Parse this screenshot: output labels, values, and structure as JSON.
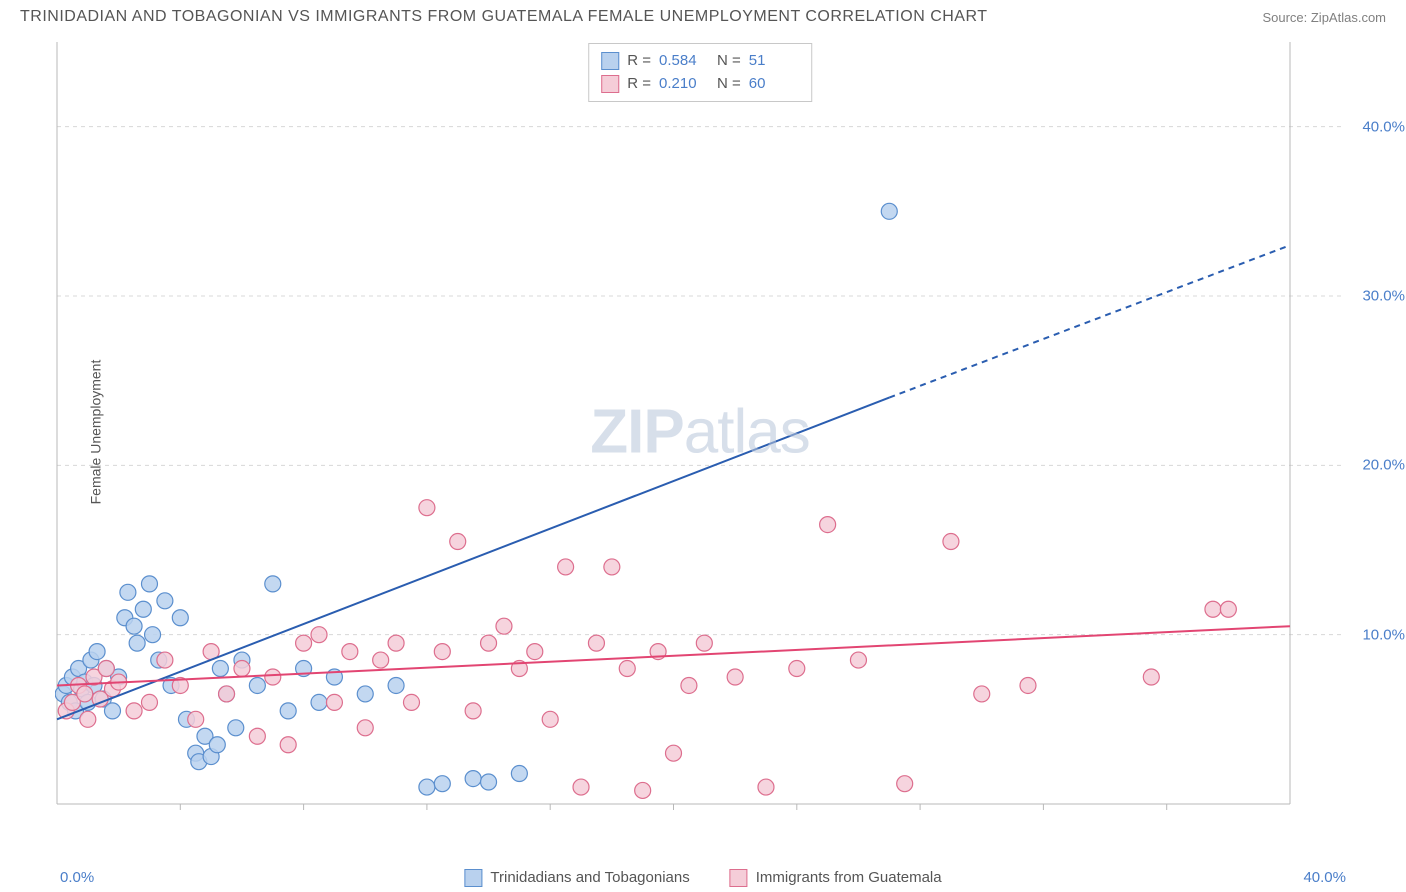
{
  "header": {
    "title": "TRINIDADIAN AND TOBAGONIAN VS IMMIGRANTS FROM GUATEMALA FEMALE UNEMPLOYMENT CORRELATION CHART",
    "source": "Source: ZipAtlas.com"
  },
  "chart": {
    "type": "scatter",
    "xlim": [
      0,
      40
    ],
    "ylim": [
      0,
      45
    ],
    "y_axis_label": "Female Unemployment",
    "x_ticks": [
      0,
      40
    ],
    "x_tick_labels": [
      "0.0%",
      "40.0%"
    ],
    "y_ticks": [
      10,
      20,
      30,
      40
    ],
    "y_tick_labels": [
      "10.0%",
      "20.0%",
      "30.0%",
      "40.0%"
    ],
    "gridline_color": "#d8d8d8",
    "axis_color": "#b8b8b8",
    "background": "#ffffff",
    "marker_radius": 8,
    "marker_stroke_width": 1.2,
    "line_width": 2,
    "watermark": "ZIPatlas",
    "series": [
      {
        "name": "Trinidadians and Tobagonians",
        "fill": "#b9d1ee",
        "stroke": "#5b8fce",
        "line_color": "#2a5db0",
        "r_value": "0.584",
        "n_value": "51",
        "regression": {
          "x1": 0,
          "y1": 5.0,
          "x2_solid": 27.0,
          "y2_solid": 24.0,
          "x2_dash": 40,
          "y2_dash": 33.0
        },
        "points": [
          [
            0.2,
            6.5
          ],
          [
            0.3,
            7.0
          ],
          [
            0.4,
            6.0
          ],
          [
            0.5,
            7.5
          ],
          [
            0.6,
            5.5
          ],
          [
            0.7,
            8.0
          ],
          [
            0.8,
            6.8
          ],
          [
            0.9,
            7.2
          ],
          [
            1.0,
            6.0
          ],
          [
            1.1,
            8.5
          ],
          [
            1.2,
            7.0
          ],
          [
            1.3,
            9.0
          ],
          [
            1.5,
            6.2
          ],
          [
            1.6,
            8.0
          ],
          [
            1.8,
            5.5
          ],
          [
            2.0,
            7.5
          ],
          [
            2.2,
            11.0
          ],
          [
            2.3,
            12.5
          ],
          [
            2.5,
            10.5
          ],
          [
            2.6,
            9.5
          ],
          [
            2.8,
            11.5
          ],
          [
            3.0,
            13.0
          ],
          [
            3.1,
            10.0
          ],
          [
            3.3,
            8.5
          ],
          [
            3.5,
            12.0
          ],
          [
            3.7,
            7.0
          ],
          [
            4.0,
            11.0
          ],
          [
            4.2,
            5.0
          ],
          [
            4.5,
            3.0
          ],
          [
            4.6,
            2.5
          ],
          [
            4.8,
            4.0
          ],
          [
            5.0,
            2.8
          ],
          [
            5.2,
            3.5
          ],
          [
            5.3,
            8.0
          ],
          [
            5.5,
            6.5
          ],
          [
            5.8,
            4.5
          ],
          [
            6.0,
            8.5
          ],
          [
            6.5,
            7.0
          ],
          [
            7.0,
            13.0
          ],
          [
            7.5,
            5.5
          ],
          [
            8.0,
            8.0
          ],
          [
            8.5,
            6.0
          ],
          [
            9.0,
            7.5
          ],
          [
            10.0,
            6.5
          ],
          [
            11.0,
            7.0
          ],
          [
            12.0,
            1.0
          ],
          [
            12.5,
            1.2
          ],
          [
            13.5,
            1.5
          ],
          [
            14.0,
            1.3
          ],
          [
            15.0,
            1.8
          ],
          [
            27.0,
            35.0
          ]
        ]
      },
      {
        "name": "Immigrants from Guatemala",
        "fill": "#f5cdd8",
        "stroke": "#dd6e8e",
        "line_color": "#e24572",
        "r_value": "0.210",
        "n_value": "60",
        "regression": {
          "x1": 0,
          "y1": 7.0,
          "x2_solid": 40,
          "y2_solid": 10.5,
          "x2_dash": 40,
          "y2_dash": 10.5
        },
        "points": [
          [
            0.3,
            5.5
          ],
          [
            0.5,
            6.0
          ],
          [
            0.7,
            7.0
          ],
          [
            0.9,
            6.5
          ],
          [
            1.0,
            5.0
          ],
          [
            1.2,
            7.5
          ],
          [
            1.4,
            6.2
          ],
          [
            1.6,
            8.0
          ],
          [
            1.8,
            6.8
          ],
          [
            2.0,
            7.2
          ],
          [
            2.5,
            5.5
          ],
          [
            3.0,
            6.0
          ],
          [
            3.5,
            8.5
          ],
          [
            4.0,
            7.0
          ],
          [
            4.5,
            5.0
          ],
          [
            5.0,
            9.0
          ],
          [
            5.5,
            6.5
          ],
          [
            6.0,
            8.0
          ],
          [
            6.5,
            4.0
          ],
          [
            7.0,
            7.5
          ],
          [
            7.5,
            3.5
          ],
          [
            8.0,
            9.5
          ],
          [
            8.5,
            10.0
          ],
          [
            9.0,
            6.0
          ],
          [
            9.5,
            9.0
          ],
          [
            10.0,
            4.5
          ],
          [
            10.5,
            8.5
          ],
          [
            11.0,
            9.5
          ],
          [
            11.5,
            6.0
          ],
          [
            12.0,
            17.5
          ],
          [
            12.5,
            9.0
          ],
          [
            13.0,
            15.5
          ],
          [
            13.5,
            5.5
          ],
          [
            14.0,
            9.5
          ],
          [
            14.5,
            10.5
          ],
          [
            15.0,
            8.0
          ],
          [
            15.5,
            9.0
          ],
          [
            16.0,
            5.0
          ],
          [
            16.5,
            14.0
          ],
          [
            17.0,
            1.0
          ],
          [
            17.5,
            9.5
          ],
          [
            18.0,
            14.0
          ],
          [
            18.5,
            8.0
          ],
          [
            19.0,
            0.8
          ],
          [
            19.5,
            9.0
          ],
          [
            20.0,
            3.0
          ],
          [
            20.5,
            7.0
          ],
          [
            21.0,
            9.5
          ],
          [
            22.0,
            7.5
          ],
          [
            23.0,
            1.0
          ],
          [
            24.0,
            8.0
          ],
          [
            25.0,
            16.5
          ],
          [
            26.0,
            8.5
          ],
          [
            27.5,
            1.2
          ],
          [
            29.0,
            15.5
          ],
          [
            30.0,
            6.5
          ],
          [
            31.5,
            7.0
          ],
          [
            35.5,
            7.5
          ],
          [
            37.5,
            11.5
          ],
          [
            38.0,
            11.5
          ]
        ]
      }
    ],
    "bottom_legend": {
      "series1_label": "Trinidadians and Tobagonians",
      "series2_label": "Immigrants from Guatemala"
    }
  }
}
